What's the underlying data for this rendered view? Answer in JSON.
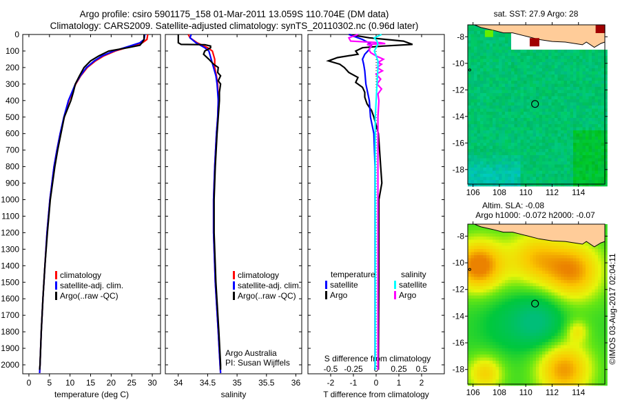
{
  "title_line1": "Argo profile: csiro 5901175_158 01-Mar-2011 13.059S 110.704E (DM data)",
  "title_line2": "Climatology: CARS2009. Satellite-adjusted climatology: synTS_20110302.nc (0.96d later)",
  "footer_credit": "©IMOS 03-Aug-2017 02:04:11",
  "colors": {
    "climatology": "#ff0000",
    "satellite_t": "#0000ff",
    "argo_t": "#000000",
    "satellite_s": "#00ffff",
    "argo_s": "#ff00ff",
    "land": "#ffcc99"
  },
  "chart_data": [
    {
      "type": "line",
      "id": "temperature",
      "xlabel": "temperature (deg C)",
      "xlim": [
        -1.5,
        32
      ],
      "xticks": [
        "0",
        "5",
        "10",
        "15",
        "20",
        "25",
        "30"
      ],
      "ylim": [
        0,
        2050
      ],
      "yticks": [
        "0",
        "100",
        "200",
        "300",
        "400",
        "500",
        "600",
        "700",
        "800",
        "900",
        "1000",
        "1100",
        "1200",
        "1300",
        "1400",
        "1500",
        "1600",
        "1700",
        "1800",
        "1900",
        "2000"
      ],
      "legend": [
        "climatology",
        "satellite-adj. clim.",
        "Argo(..raw -QC)"
      ],
      "series": [
        {
          "name": "climatology",
          "color": "#ff0000",
          "depth": [
            0,
            30,
            50,
            70,
            100,
            130,
            160,
            200,
            250,
            300,
            400,
            500,
            600,
            700,
            800,
            900,
            1000,
            1200,
            1400,
            1600,
            1800,
            2000,
            2050
          ],
          "values": [
            28.9,
            28.7,
            27.6,
            25,
            21,
            18.2,
            16.2,
            14.2,
            12.6,
            11.4,
            9.7,
            8.6,
            7.6,
            6.8,
            6.1,
            5.6,
            5.1,
            4.4,
            3.9,
            3.4,
            3.0,
            2.7,
            2.6
          ]
        },
        {
          "name": "satellite-adj. clim.",
          "color": "#0000ff",
          "depth": [
            0,
            30,
            50,
            70,
            100,
            130,
            160,
            200,
            250,
            300,
            400,
            500,
            600,
            700,
            800,
            900,
            1000,
            1200,
            1400,
            1600,
            1800,
            2000,
            2050
          ],
          "values": [
            28.2,
            28,
            27,
            24.5,
            20.6,
            17.8,
            15.9,
            14,
            12.5,
            11.3,
            9.6,
            8.5,
            7.6,
            6.8,
            6.1,
            5.6,
            5.1,
            4.4,
            3.9,
            3.4,
            3.0,
            2.7,
            2.6
          ]
        },
        {
          "name": "Argo(..raw -QC)",
          "color": "#000000",
          "depth": [
            0,
            30,
            50,
            65,
            80,
            100,
            130,
            160,
            200,
            250,
            300,
            350,
            400,
            500,
            600,
            700,
            800,
            1000,
            1200,
            1400,
            1600,
            1800,
            2000,
            2030
          ],
          "values": [
            28.0,
            28,
            27.5,
            27,
            24,
            19.4,
            17,
            15,
            13.4,
            12.3,
            11.3,
            10.8,
            10.2,
            8.6,
            7.8,
            7.0,
            6.3,
            5.2,
            4.5,
            3.9,
            3.4,
            3.0,
            2.7,
            2.6
          ]
        }
      ]
    },
    {
      "type": "line",
      "id": "salinity",
      "xlabel": "salinity",
      "xlim": [
        33.78,
        36.1
      ],
      "xticks": [
        "34",
        "34.5",
        "35",
        "35.5",
        "36"
      ],
      "ylim": [
        0,
        2050
      ],
      "legend": [
        "climatology",
        "satellite-adj. clim.",
        "Argo(..raw -QC)"
      ],
      "annotations": [
        "Argo Australia",
        "PI: Susan Wijffels"
      ],
      "series": [
        {
          "name": "climatology",
          "color": "#ff0000",
          "depth": [
            0,
            20,
            50,
            80,
            100,
            150,
            200,
            250,
            300,
            400,
            500,
            600,
            800,
            1000,
            1200,
            1500,
            1800,
            2000,
            2050
          ],
          "values": [
            34.17,
            34.2,
            34.32,
            34.5,
            34.58,
            34.62,
            34.62,
            34.65,
            34.67,
            34.68,
            34.67,
            34.65,
            34.62,
            34.6,
            34.6,
            34.63,
            34.68,
            34.71,
            34.72
          ]
        },
        {
          "name": "satellite-adj. clim.",
          "color": "#0000ff",
          "depth": [
            0,
            20,
            50,
            80,
            100,
            150,
            200,
            250,
            300,
            400,
            500,
            600,
            800,
            1000,
            1200,
            1500,
            1800,
            2000,
            2050
          ],
          "values": [
            34.22,
            34.2,
            34.3,
            34.45,
            34.52,
            34.56,
            34.6,
            34.64,
            34.66,
            34.68,
            34.67,
            34.65,
            34.62,
            34.6,
            34.6,
            34.63,
            34.68,
            34.71,
            34.72
          ]
        },
        {
          "name": "Argo(..raw -QC)",
          "color": "#000000",
          "depth": [
            0,
            50,
            60,
            62,
            70,
            80,
            100,
            120,
            150,
            180,
            200,
            230,
            250,
            280,
            300,
            350,
            400,
            500,
            600,
            800,
            1000,
            1200,
            1500,
            1800,
            2000,
            2030
          ],
          "values": [
            34.0,
            34.0,
            34.05,
            34.45,
            34.55,
            34.55,
            34.45,
            34.43,
            34.52,
            34.6,
            34.68,
            34.67,
            34.72,
            34.68,
            34.72,
            34.7,
            34.7,
            34.68,
            34.66,
            34.63,
            34.61,
            34.61,
            34.64,
            34.69,
            34.72,
            34.72
          ]
        }
      ]
    },
    {
      "type": "line",
      "id": "difference",
      "xlabel": "T difference from climatology",
      "xlabel_secondary": "S difference from climatology",
      "xlim": [
        -3,
        3
      ],
      "xticks": [
        "-2",
        "-1",
        "0",
        "1",
        "2"
      ],
      "xticks_secondary": [
        "-0.5",
        "-0.25",
        "0",
        "0.25",
        "0.5"
      ],
      "ylim": [
        0,
        2050
      ],
      "legend_headers": [
        "temperature",
        "salinity"
      ],
      "legend_temperature": [
        "satellite",
        "Argo"
      ],
      "legend_salinity": [
        "satellite",
        "Argo"
      ],
      "series": [
        {
          "name": "temperature Argo",
          "color": "#000000",
          "axis": "T",
          "depth": [
            0,
            20,
            40,
            60,
            70,
            80,
            100,
            120,
            140,
            160,
            180,
            200,
            230,
            260,
            290,
            320,
            350,
            380,
            420,
            460,
            500,
            600,
            700,
            800,
            900,
            1000,
            1500,
            2000,
            2030
          ],
          "values": [
            -1.2,
            -0.3,
            1.2,
            1.6,
            0.3,
            -0.6,
            -0.9,
            -0.8,
            -1.7,
            -2.1,
            -1.6,
            -1.4,
            -1.2,
            -0.8,
            -0.9,
            -0.6,
            -0.5,
            -0.5,
            -0.4,
            -0.2,
            -0.1,
            0.1,
            0.15,
            0.2,
            0.25,
            0.12,
            0.12,
            0.1,
            0.1
          ]
        },
        {
          "name": "temperature satellite",
          "color": "#0000ff",
          "axis": "T",
          "depth": [
            0,
            30,
            60,
            90,
            120,
            150,
            180,
            220,
            300,
            400,
            500,
            600,
            800,
            1000,
            1500,
            2000,
            2030
          ],
          "values": [
            -1.2,
            -0.6,
            -0.2,
            -0.3,
            -0.5,
            -0.6,
            -0.55,
            -0.5,
            -0.45,
            -0.3,
            -0.25,
            -0.1,
            -0.05,
            -0.05,
            -0.05,
            -0.05,
            -0.05
          ]
        },
        {
          "name": "salinity Argo",
          "color": "#ff00ff",
          "axis": "S",
          "depth": [
            0,
            20,
            40,
            50,
            55,
            60,
            70,
            90,
            110,
            130,
            150,
            170,
            180,
            200,
            220,
            240,
            270,
            300,
            330,
            360,
            400,
            500,
            2000,
            2030
          ],
          "values": [
            -0.2,
            -0.3,
            -0.28,
            0.05,
            0.1,
            -0.1,
            -0.05,
            -0.08,
            -0.06,
            0.0,
            0.08,
            0.02,
            0.06,
            0.01,
            0.07,
            0.0,
            0.05,
            0.01,
            0.06,
            0.02,
            0.03,
            0.02,
            0.02,
            0.02
          ]
        },
        {
          "name": "salinity satellite",
          "color": "#00ffff",
          "axis": "S",
          "depth": [
            0,
            20,
            40,
            60,
            80,
            100,
            130,
            160,
            200,
            300,
            400,
            500,
            800,
            1000,
            1500,
            2000,
            2030
          ],
          "values": [
            0.06,
            -0.02,
            0.01,
            0.02,
            0.0,
            -0.02,
            0.0,
            0.02,
            0.02,
            0.01,
            0.0,
            -0.01,
            -0.01,
            -0.01,
            -0.01,
            -0.01,
            -0.01
          ]
        }
      ]
    },
    {
      "type": "heatmap",
      "id": "sst_map",
      "title": "sat. SST: 27.9 Argo: 28",
      "xticks": [
        "106",
        "108",
        "110",
        "112",
        "114"
      ],
      "yticks": [
        "-8",
        "-10",
        "-12",
        "-14",
        "-16",
        "-18"
      ],
      "xlim": [
        105.6,
        116.0
      ],
      "ylim": [
        -19.1,
        -7.1
      ],
      "marker_lon": 110.704,
      "marker_lat": -13.059
    },
    {
      "type": "heatmap",
      "id": "sla_map",
      "title_line1": "Altim. SLA: -0.08",
      "title_line2": "Argo h1000: -0.072 h2000: -0.07",
      "xticks": [
        "106",
        "108",
        "110",
        "112",
        "114"
      ],
      "yticks": [
        "-8",
        "-10",
        "-12",
        "-14",
        "-16",
        "-18"
      ],
      "xlim": [
        105.6,
        116.0
      ],
      "ylim": [
        -19.1,
        -7.1
      ],
      "marker_lon": 110.704,
      "marker_lat": -13.059
    }
  ]
}
